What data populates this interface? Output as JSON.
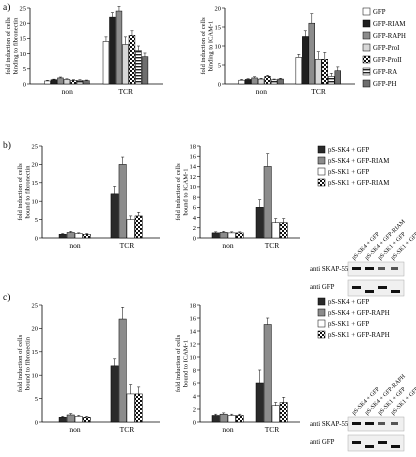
{
  "panel_labels": [
    "a)",
    "b)",
    "c)"
  ],
  "legends": {
    "a": [
      "GFP",
      "GFP-RIAM",
      "GFP-RAPH",
      "GFP-ProI",
      "GFP-ProII",
      "GFP-RA",
      "GFP-PH"
    ],
    "b": [
      "pS-SK4 + GFP",
      "pS-SK4 + GFP-RIAM",
      "pS-SK1 + GFP",
      "pS-SK1 + GFP-RIAM"
    ],
    "c": [
      "pS-SK4 + GFP",
      "pS-SK4 + GFP-RAPH",
      "pS-SK1 + GFP",
      "pS-SK1 + GFP-RAPH"
    ]
  },
  "blots": {
    "b": {
      "lanes": [
        "pS-SK4 + GFP",
        "pS-SK4 + GFP-RIAM",
        "pS-SK1 + GFP",
        "pS-SK1 + GFP-RIAM"
      ],
      "rows": [
        "anti SKAP-55",
        "anti GFP"
      ]
    },
    "c": {
      "lanes": [
        "pS-SK4 + GFP",
        "pS-SK4 + GFP-RAPH",
        "pS-SK1 + GFP",
        "pS-SK1 + GFP-RAPH"
      ],
      "rows": [
        "anti SKAP-55",
        "anti GFP"
      ]
    }
  },
  "series_styles": {
    "a": [
      "white",
      "#1f1f1f",
      "#8c8c8c",
      "#d8d8d8",
      "checker",
      "stripe",
      "#6e6e6e"
    ],
    "bc": [
      "#2a2a2a",
      "#8c8c8c",
      "white",
      "checker"
    ]
  },
  "chart_data": [
    {
      "id": "a1",
      "type": "bar",
      "categories": [
        "non",
        "TCR"
      ],
      "ylabel": "fold induction of cells binding to fibronectin",
      "ylim": [
        0,
        25
      ],
      "yticks": [
        0,
        5,
        10,
        15,
        20,
        25
      ],
      "series": [
        {
          "name": "GFP",
          "values": [
            1,
            14
          ],
          "errors": [
            0.2,
            1.5
          ]
        },
        {
          "name": "GFP-RIAM",
          "values": [
            1.4,
            22
          ],
          "errors": [
            0.2,
            1.5
          ]
        },
        {
          "name": "GFP-RAPH",
          "values": [
            2,
            24
          ],
          "errors": [
            0.3,
            1.5
          ]
        },
        {
          "name": "GFP-ProI",
          "values": [
            1.5,
            13
          ],
          "errors": [
            0.2,
            2.5
          ]
        },
        {
          "name": "GFP-ProII",
          "values": [
            1.2,
            16
          ],
          "errors": [
            0.2,
            1.5
          ]
        },
        {
          "name": "GFP-RA",
          "values": [
            1.2,
            11
          ],
          "errors": [
            0.2,
            1.5
          ]
        },
        {
          "name": "GFP-PH",
          "values": [
            1.1,
            9
          ],
          "errors": [
            0.2,
            1.2
          ]
        }
      ]
    },
    {
      "id": "a2",
      "type": "bar",
      "categories": [
        "non",
        "TCR"
      ],
      "ylabel": "fold induction of cells binding to ICAM-1",
      "ylim": [
        0,
        20
      ],
      "yticks": [
        0,
        5,
        10,
        15,
        20
      ],
      "series": [
        {
          "name": "GFP",
          "values": [
            1,
            7
          ],
          "errors": [
            0.2,
            0.8
          ]
        },
        {
          "name": "GFP-RIAM",
          "values": [
            1.2,
            12.5
          ],
          "errors": [
            0.2,
            1.5
          ]
        },
        {
          "name": "GFP-RAPH",
          "values": [
            1.6,
            16
          ],
          "errors": [
            0.3,
            2.5
          ]
        },
        {
          "name": "GFP-ProI",
          "values": [
            1.3,
            6.5
          ],
          "errors": [
            0.2,
            2
          ]
        },
        {
          "name": "GFP-ProII",
          "values": [
            2,
            6.5
          ],
          "errors": [
            0.3,
            1.8
          ]
        },
        {
          "name": "GFP-RA",
          "values": [
            1.1,
            2
          ],
          "errors": [
            0.2,
            0.8
          ]
        },
        {
          "name": "GFP-PH",
          "values": [
            1.3,
            3.5
          ],
          "errors": [
            0.2,
            1
          ]
        }
      ]
    },
    {
      "id": "b1",
      "type": "bar",
      "categories": [
        "non",
        "TCR"
      ],
      "ylabel": "fold induction of cells bound to fibronectin",
      "ylim": [
        0,
        25
      ],
      "yticks": [
        0,
        5,
        10,
        15,
        20,
        25
      ],
      "series": [
        {
          "name": "pS-SK4 + GFP",
          "values": [
            1,
            12
          ],
          "errors": [
            0.2,
            2
          ]
        },
        {
          "name": "pS-SK4 + GFP-RIAM",
          "values": [
            1.5,
            20
          ],
          "errors": [
            0.3,
            2
          ]
        },
        {
          "name": "pS-SK1 + GFP",
          "values": [
            1.2,
            5
          ],
          "errors": [
            0.2,
            1
          ]
        },
        {
          "name": "pS-SK1 + GFP-RIAM",
          "values": [
            1,
            6
          ],
          "errors": [
            0.2,
            1
          ]
        }
      ]
    },
    {
      "id": "b2",
      "type": "bar",
      "categories": [
        "non",
        "TCR"
      ],
      "ylabel": "fold induction of cells bound to ICAM-1",
      "ylim": [
        0,
        18
      ],
      "yticks": [
        0,
        2,
        4,
        6,
        8,
        10,
        12,
        14,
        16,
        18
      ],
      "series": [
        {
          "name": "pS-SK4 + GFP",
          "values": [
            1,
            6
          ],
          "errors": [
            0.2,
            1.5
          ]
        },
        {
          "name": "pS-SK4 + GFP-RIAM",
          "values": [
            1.1,
            14
          ],
          "errors": [
            0.2,
            2.5
          ]
        },
        {
          "name": "pS-SK1 + GFP",
          "values": [
            1,
            3
          ],
          "errors": [
            0.2,
            0.8
          ]
        },
        {
          "name": "pS-SK1 + GFP-RIAM",
          "values": [
            1,
            3
          ],
          "errors": [
            0.2,
            0.8
          ]
        }
      ]
    },
    {
      "id": "c1",
      "type": "bar",
      "categories": [
        "non",
        "TCR"
      ],
      "ylabel": "fold induction of cells bound to fibronectin",
      "ylim": [
        0,
        25
      ],
      "yticks": [
        0,
        5,
        10,
        15,
        20,
        25
      ],
      "series": [
        {
          "name": "pS-SK4 + GFP",
          "values": [
            1,
            12
          ],
          "errors": [
            0.2,
            1.5
          ]
        },
        {
          "name": "pS-SK4 + GFP-RAPH",
          "values": [
            1.5,
            22
          ],
          "errors": [
            0.3,
            2.5
          ]
        },
        {
          "name": "pS-SK1 + GFP",
          "values": [
            1.2,
            6
          ],
          "errors": [
            0.2,
            2
          ]
        },
        {
          "name": "pS-SK1 + GFP-RAPH",
          "values": [
            1,
            6
          ],
          "errors": [
            0.2,
            1.5
          ]
        }
      ]
    },
    {
      "id": "c2",
      "type": "bar",
      "categories": [
        "non",
        "TCR"
      ],
      "ylabel": "fold induction of cells bound to ICAM-1",
      "ylim": [
        0,
        18
      ],
      "yticks": [
        0,
        2,
        4,
        6,
        8,
        10,
        12,
        14,
        16,
        18
      ],
      "series": [
        {
          "name": "pS-SK4 + GFP",
          "values": [
            1,
            6
          ],
          "errors": [
            0.2,
            2
          ]
        },
        {
          "name": "pS-SK4 + GFP-RAPH",
          "values": [
            1.2,
            15
          ],
          "errors": [
            0.2,
            1
          ]
        },
        {
          "name": "pS-SK1 + GFP",
          "values": [
            1,
            2.5
          ],
          "errors": [
            0.2,
            0.5
          ]
        },
        {
          "name": "pS-SK1 + GFP-RAPH",
          "values": [
            1,
            3
          ],
          "errors": [
            0.2,
            0.8
          ]
        }
      ]
    }
  ]
}
